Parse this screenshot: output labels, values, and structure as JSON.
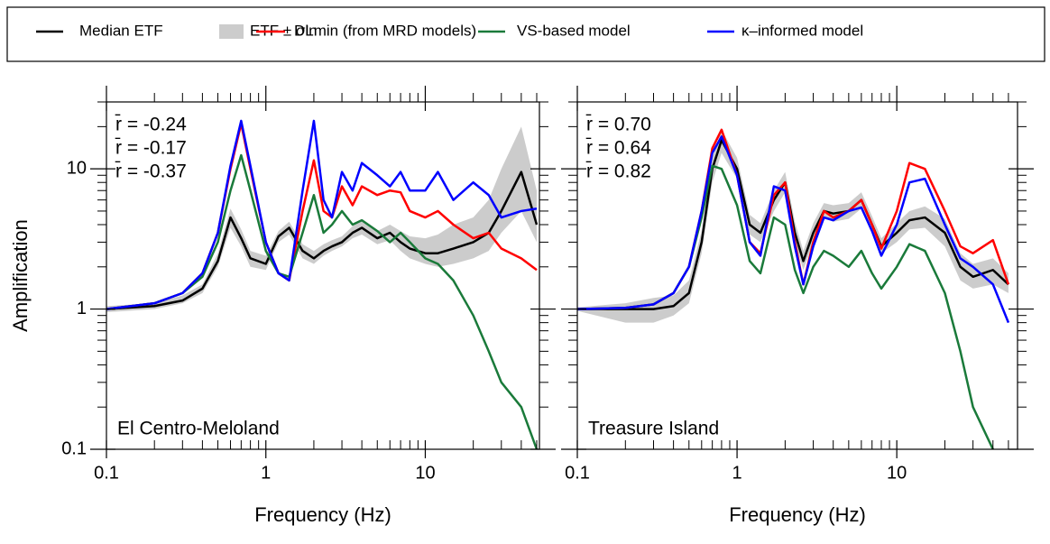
{
  "chart_data": [
    {
      "type": "line",
      "label": "El Centro-Meloland",
      "xlabel": "Frequency (Hz)",
      "ylabel": "Amplification",
      "xlog": true,
      "ylog": true,
      "xlim": [
        0.1,
        52
      ],
      "ylim": [
        0.1,
        30
      ],
      "xticks": [
        0.1,
        1,
        10
      ],
      "yticks": [
        0.1,
        1,
        10
      ],
      "minor_ticks": true,
      "x": [
        0.1,
        0.2,
        0.3,
        0.4,
        0.5,
        0.6,
        0.7,
        0.8,
        1,
        1.2,
        1.4,
        1.7,
        2,
        2.3,
        2.6,
        3,
        3.5,
        4,
        5,
        6,
        7,
        8,
        10,
        12,
        15,
        20,
        25,
        30,
        40,
        50
      ],
      "series": [
        {
          "name": "Median ETF",
          "color": "#000000",
          "values": [
            1.0,
            1.05,
            1.15,
            1.4,
            2.2,
            4.5,
            3.2,
            2.3,
            2.1,
            3.3,
            3.8,
            2.6,
            2.3,
            2.6,
            2.8,
            3.0,
            3.5,
            3.8,
            3.2,
            3.5,
            3.0,
            2.7,
            2.5,
            2.5,
            2.7,
            3.0,
            3.5,
            5,
            9.5,
            4
          ]
        },
        {
          "name": "ETF ± σln",
          "color": "#cccccc",
          "band": true,
          "lower": [
            0.95,
            1.0,
            1.1,
            1.3,
            2.0,
            3.8,
            2.8,
            2.0,
            1.9,
            3.0,
            3.4,
            2.3,
            2.1,
            2.4,
            2.6,
            2.8,
            3.2,
            3.4,
            2.9,
            3.1,
            2.6,
            2.3,
            2.1,
            2.0,
            2.1,
            2.3,
            2.6,
            3.5,
            5,
            3
          ],
          "upper": [
            1.05,
            1.1,
            1.25,
            1.5,
            2.5,
            5.2,
            3.7,
            2.6,
            2.4,
            3.6,
            4.2,
            2.9,
            2.6,
            2.9,
            3.1,
            3.3,
            3.9,
            4.3,
            3.6,
            4.0,
            3.6,
            3.3,
            3.2,
            3.4,
            4.0,
            4.5,
            6,
            10,
            20,
            7
          ]
        },
        {
          "name": "DLmin (from MRD models)",
          "color": "#ff0000",
          "values": [
            1.0,
            1.1,
            1.3,
            1.8,
            3.5,
            10,
            21,
            10,
            3.0,
            1.8,
            1.6,
            5,
            11.5,
            5,
            4.5,
            7.5,
            5.5,
            7.5,
            6.5,
            7,
            6.8,
            5,
            4.5,
            5,
            4,
            3.2,
            3.5,
            2.7,
            2.3,
            1.9
          ]
        },
        {
          "name": "VS-based model",
          "color": "#1a7a3a",
          "values": [
            1.0,
            1.1,
            1.3,
            1.7,
            3,
            7,
            12.5,
            7,
            2.6,
            1.8,
            1.7,
            3.5,
            6.5,
            3.5,
            4,
            5,
            4,
            4.3,
            3.6,
            3.0,
            3.5,
            3.0,
            2.3,
            2.1,
            1.6,
            0.9,
            0.5,
            0.3,
            0.2,
            0.1
          ]
        },
        {
          "name": "κ–informed model",
          "color": "#0000ff",
          "values": [
            1.0,
            1.1,
            1.3,
            1.8,
            3.5,
            10.5,
            22,
            10.5,
            3.0,
            1.8,
            1.6,
            7,
            22,
            6,
            4.5,
            9.5,
            7,
            11,
            9,
            7.5,
            9.5,
            7,
            7,
            9.5,
            6,
            8,
            6.5,
            4.5,
            5,
            5.2
          ]
        }
      ],
      "annotations": [
        {
          "text": "r̄ = -0.24",
          "color": "#0000ff"
        },
        {
          "text": "r̄ = -0.17",
          "color": "#ff0000"
        },
        {
          "text": "r̄ = -0.37",
          "color": "#1a7a3a"
        }
      ]
    },
    {
      "type": "line",
      "label": "Treasure Island",
      "xlabel": "Frequency (Hz)",
      "xlog": true,
      "ylog": true,
      "xlim": [
        0.1,
        57
      ],
      "ylim": [
        0.1,
        30
      ],
      "xticks": [
        0.1,
        1,
        10
      ],
      "yticks": [
        0.1,
        1,
        10
      ],
      "minor_ticks": true,
      "x": [
        0.1,
        0.2,
        0.3,
        0.4,
        0.5,
        0.6,
        0.7,
        0.8,
        1,
        1.2,
        1.4,
        1.7,
        2,
        2.3,
        2.6,
        3,
        3.5,
        4,
        5,
        6,
        7,
        8,
        10,
        12,
        15,
        20,
        25,
        30,
        40,
        50
      ],
      "series": [
        {
          "color": "#000000",
          "values": [
            1.0,
            1.0,
            1.0,
            1.05,
            1.3,
            3,
            10,
            16,
            10,
            4,
            3.5,
            6,
            8,
            3.5,
            2.2,
            3.5,
            5,
            4.8,
            5,
            6,
            4,
            2.8,
            3.5,
            4.3,
            4.5,
            3.5,
            2,
            1.7,
            1.9,
            1.5
          ]
        },
        {
          "color": "#cccccc",
          "band": true,
          "lower": [
            0.97,
            0.8,
            0.8,
            0.9,
            1.1,
            2.5,
            8,
            13,
            8.5,
            3.4,
            3,
            5,
            6.8,
            3,
            1.9,
            3,
            4.5,
            4.2,
            4.4,
            5.2,
            3.5,
            2.5,
            3,
            3.7,
            3.8,
            2.8,
            1.6,
            1.4,
            1.5,
            1.3
          ],
          "upper": [
            1.03,
            1.1,
            1.2,
            1.25,
            1.6,
            3.6,
            12,
            19,
            12,
            4.7,
            4.1,
            7,
            9.5,
            4.2,
            2.6,
            4.1,
            5.7,
            5.5,
            5.7,
            6.8,
            4.6,
            3.2,
            4.1,
            5,
            5.4,
            4.4,
            2.5,
            2.1,
            2.3,
            1.8
          ]
        },
        {
          "color": "#ff0000",
          "values": [
            1.0,
            1.02,
            1.08,
            1.3,
            2,
            5,
            14,
            19,
            9,
            3.0,
            2.5,
            6.5,
            8,
            3,
            1.5,
            3,
            5,
            4.5,
            5,
            6,
            4,
            2.7,
            5,
            11,
            10,
            5,
            2.8,
            2.5,
            3.1,
            1.5
          ]
        },
        {
          "color": "#1a7a3a",
          "values": [
            1.0,
            1.02,
            1.08,
            1.3,
            2,
            4.5,
            10.5,
            10,
            5.5,
            2.2,
            1.8,
            4.5,
            4,
            1.9,
            1.3,
            2,
            2.6,
            2.4,
            2.0,
            2.6,
            1.8,
            1.4,
            2,
            2.9,
            2.6,
            1.3,
            0.5,
            0.2,
            0.1,
            0.08
          ]
        },
        {
          "color": "#0000ff",
          "values": [
            1.0,
            1.02,
            1.08,
            1.3,
            2,
            5,
            13,
            17,
            9,
            3.0,
            2.4,
            7.5,
            7,
            2.8,
            1.5,
            2.8,
            4.5,
            4.3,
            5,
            5.3,
            3.6,
            2.4,
            4,
            8,
            8.5,
            4,
            2.3,
            2,
            1.5,
            0.8
          ]
        }
      ],
      "annotations": [
        {
          "text": "r̄ = 0.70",
          "color": "#0000ff"
        },
        {
          "text": "r̄ = 0.64",
          "color": "#ff0000"
        },
        {
          "text": "r̄ = 0.82",
          "color": "#1a7a3a"
        }
      ]
    }
  ]
}
